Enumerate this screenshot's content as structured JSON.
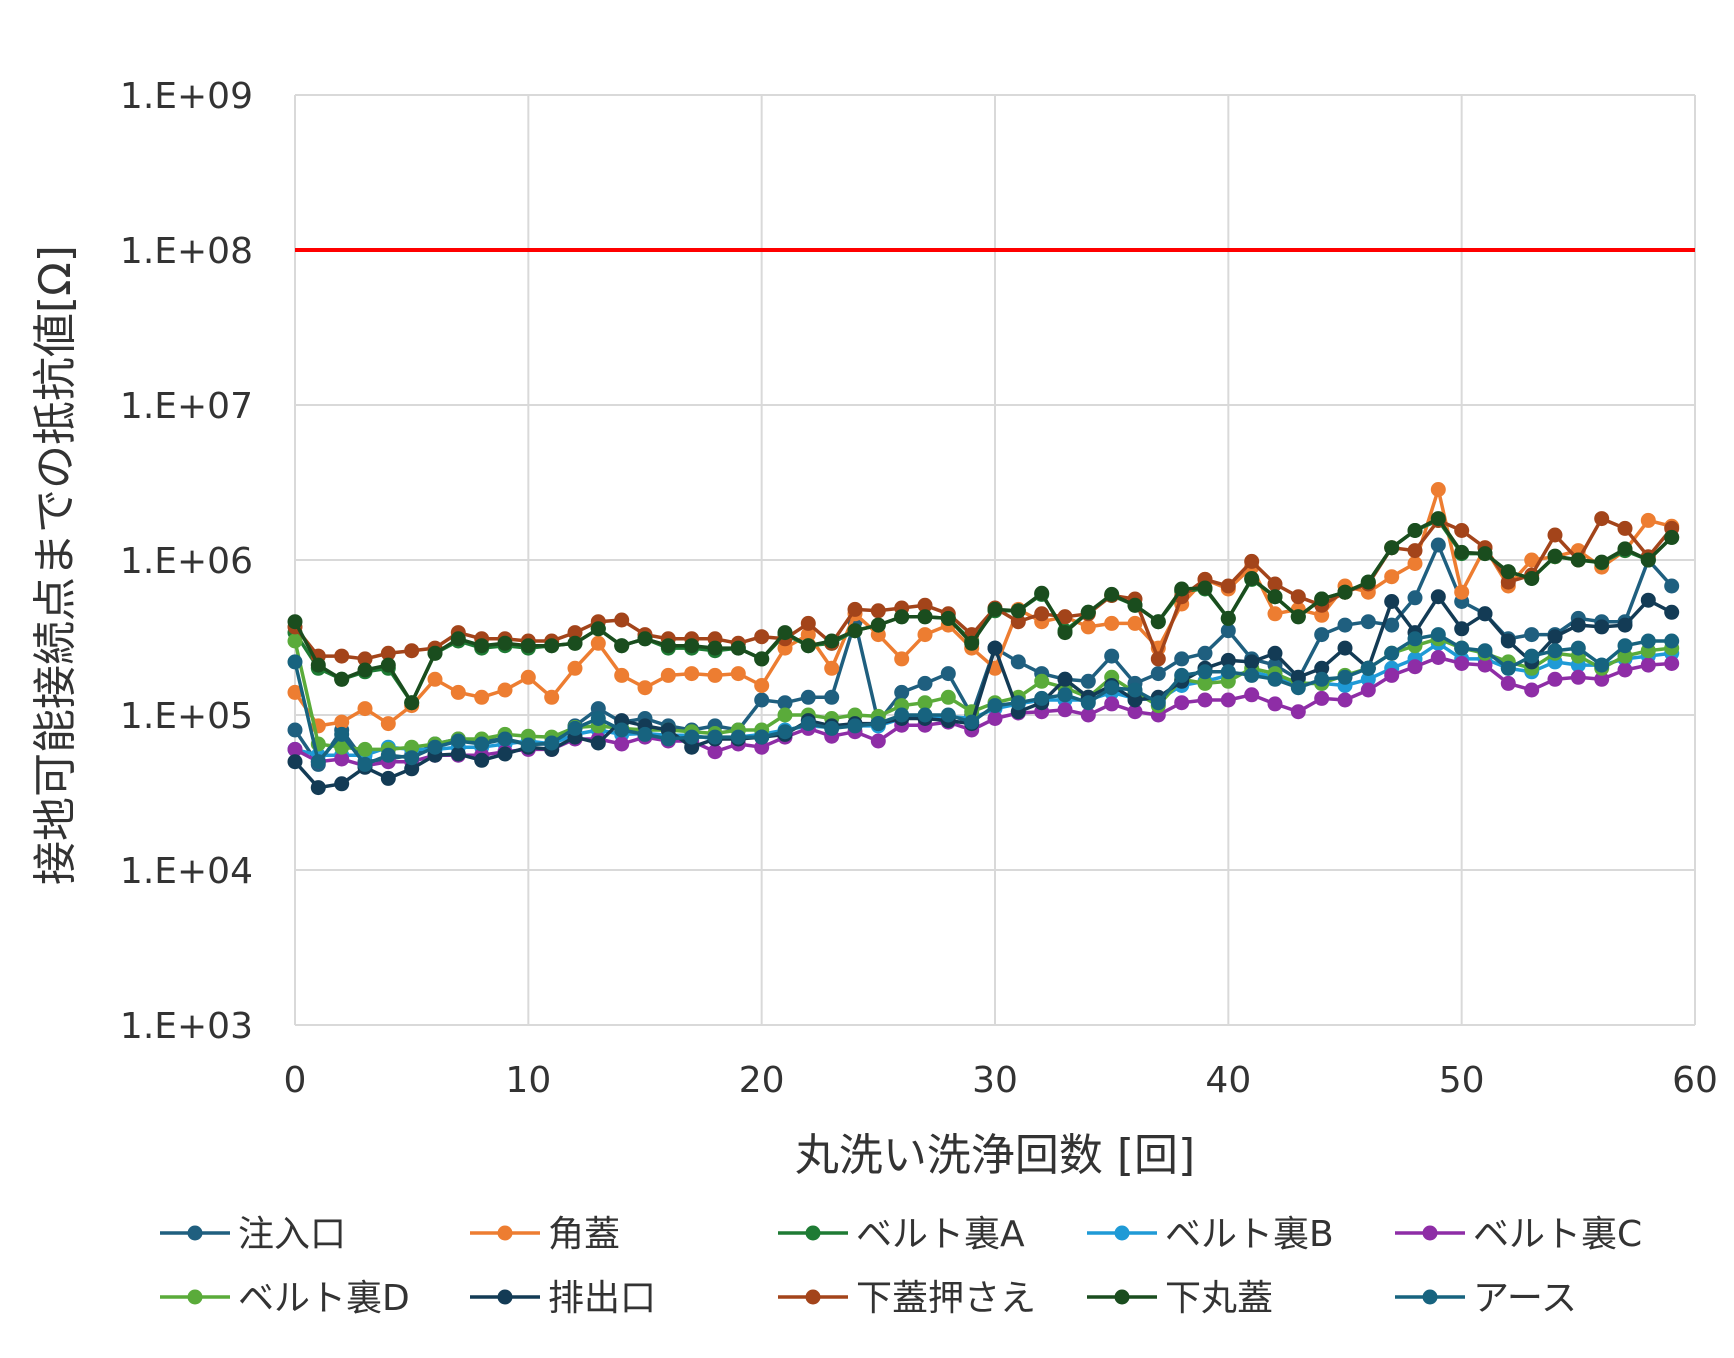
{
  "chart_data": {
    "type": "line",
    "title": "",
    "xlabel": "丸洗い洗浄回数 [回]",
    "ylabel": "接地可能接続点までの抵抗値[Ω]",
    "xlim": [
      0,
      60
    ],
    "ylim": [
      1000,
      1000000000
    ],
    "yscale": "log",
    "grid": true,
    "legend_position": "bottom",
    "xticks": [
      "0",
      "10",
      "20",
      "30",
      "40",
      "50",
      "60"
    ],
    "yticks": [
      "1.E+03",
      "1.E+04",
      "1.E+05",
      "1.E+06",
      "1.E+07",
      "1.E+08",
      "1.E+09"
    ],
    "threshold": {
      "value": 100000000,
      "color": "#ff0000"
    },
    "x": [
      0,
      1,
      2,
      3,
      4,
      5,
      6,
      7,
      8,
      9,
      10,
      11,
      12,
      13,
      14,
      15,
      16,
      17,
      18,
      19,
      20,
      21,
      22,
      23,
      24,
      25,
      26,
      27,
      28,
      29,
      30,
      31,
      32,
      33,
      34,
      35,
      36,
      37,
      38,
      39,
      40,
      41,
      42,
      43,
      44,
      45,
      46,
      47,
      48,
      49,
      50,
      51,
      52,
      53,
      54,
      55,
      56,
      57,
      58,
      59
    ],
    "series": [
      {
        "name": "注入口",
        "color": "#1f5f7f",
        "values": [
          80000,
          48000,
          80000,
          50000,
          52000,
          55000,
          65000,
          70000,
          68000,
          70000,
          65000,
          65000,
          85000,
          110000,
          90000,
          95000,
          85000,
          80000,
          85000,
          80000,
          125000,
          120000,
          130000,
          130000,
          400000,
          90000,
          140000,
          160000,
          185000,
          100000,
          270000,
          220000,
          185000,
          170000,
          165000,
          240000,
          160000,
          185000,
          230000,
          250000,
          350000,
          230000,
          210000,
          170000,
          330000,
          380000,
          400000,
          380000,
          570000,
          1250000,
          540000,
          450000,
          310000,
          330000,
          330000,
          420000,
          400000,
          400000,
          1000000,
          680000
        ]
      },
      {
        "name": "角蓋",
        "color": "#ed7d31",
        "values": [
          140000,
          85000,
          90000,
          110000,
          88000,
          115000,
          170000,
          140000,
          130000,
          145000,
          175000,
          130000,
          200000,
          290000,
          180000,
          150000,
          180000,
          185000,
          180000,
          185000,
          155000,
          270000,
          330000,
          200000,
          450000,
          330000,
          230000,
          330000,
          380000,
          270000,
          200000,
          480000,
          400000,
          430000,
          370000,
          390000,
          390000,
          270000,
          520000,
          750000,
          650000,
          900000,
          450000,
          480000,
          440000,
          680000,
          620000,
          780000,
          950000,
          2850000,
          620000,
          1200000,
          680000,
          1000000,
          1050000,
          1150000,
          900000,
          1150000,
          1800000,
          1650000
        ]
      },
      {
        "name": "ベルト裏A",
        "color": "#1e7b34",
        "values": [
          340000,
          200000,
          170000,
          190000,
          200000,
          120000,
          250000,
          300000,
          270000,
          280000,
          270000,
          280000,
          290000,
          360000,
          280000,
          310000,
          270000,
          270000,
          260000,
          270000,
          230000,
          330000,
          280000,
          290000,
          350000,
          380000,
          430000,
          430000,
          420000,
          300000,
          470000,
          470000,
          600000,
          350000,
          460000,
          590000,
          510000,
          400000,
          630000,
          650000,
          420000,
          750000,
          580000,
          430000,
          560000,
          620000,
          720000,
          1200000,
          1550000,
          1800000,
          1100000,
          1100000,
          840000,
          760000,
          1050000,
          1000000,
          960000,
          1150000,
          1000000,
          1400000
        ]
      },
      {
        "name": "ベルト裏B",
        "color": "#1f9ad6",
        "values": [
          60000,
          55000,
          55000,
          55000,
          62000,
          60000,
          60000,
          62000,
          62000,
          65000,
          68000,
          65000,
          75000,
          80000,
          75000,
          76000,
          74000,
          74000,
          70000,
          72000,
          75000,
          80000,
          85000,
          83000,
          85000,
          85000,
          95000,
          97000,
          98000,
          95000,
          110000,
          118000,
          125000,
          125000,
          125000,
          140000,
          128000,
          125000,
          155000,
          165000,
          180000,
          190000,
          175000,
          160000,
          160000,
          155000,
          170000,
          200000,
          230000,
          290000,
          230000,
          230000,
          200000,
          190000,
          220000,
          210000,
          210000,
          230000,
          240000,
          250000
        ]
      },
      {
        "name": "ベルト裏C",
        "color": "#8e2da6",
        "values": [
          60000,
          50000,
          52000,
          47000,
          50000,
          50000,
          55000,
          55000,
          55000,
          58000,
          60000,
          60000,
          70000,
          70000,
          65000,
          72000,
          68000,
          68000,
          58000,
          65000,
          62000,
          72000,
          82000,
          73000,
          78000,
          68000,
          86000,
          86000,
          90000,
          80000,
          95000,
          103000,
          105000,
          108000,
          100000,
          118000,
          105000,
          100000,
          120000,
          125000,
          125000,
          135000,
          118000,
          105000,
          128000,
          125000,
          145000,
          180000,
          205000,
          235000,
          215000,
          210000,
          160000,
          145000,
          170000,
          175000,
          170000,
          195000,
          210000,
          215000
        ]
      },
      {
        "name": "ベルト裏D",
        "color": "#5aab3a",
        "values": [
          300000,
          65000,
          62000,
          60000,
          60000,
          62000,
          65000,
          70000,
          70000,
          75000,
          73000,
          72000,
          83000,
          85000,
          82000,
          80000,
          80000,
          78000,
          76000,
          80000,
          80000,
          100000,
          100000,
          95000,
          100000,
          98000,
          115000,
          120000,
          130000,
          105000,
          120000,
          130000,
          165000,
          150000,
          130000,
          175000,
          140000,
          115000,
          170000,
          160000,
          165000,
          200000,
          185000,
          160000,
          160000,
          180000,
          200000,
          250000,
          280000,
          310000,
          270000,
          250000,
          220000,
          200000,
          250000,
          240000,
          200000,
          240000,
          260000,
          270000
        ]
      },
      {
        "name": "排出口",
        "color": "#133b55",
        "values": [
          50000,
          34000,
          36000,
          46000,
          39000,
          45000,
          55000,
          56000,
          51000,
          56000,
          62000,
          60000,
          72000,
          66000,
          92000,
          85000,
          80000,
          62000,
          70000,
          70000,
          72000,
          75000,
          92000,
          85000,
          88000,
          88000,
          95000,
          95000,
          92000,
          88000,
          270000,
          105000,
          120000,
          170000,
          130000,
          155000,
          125000,
          130000,
          165000,
          200000,
          225000,
          220000,
          250000,
          175000,
          200000,
          270000,
          200000,
          540000,
          340000,
          580000,
          360000,
          450000,
          300000,
          220000,
          320000,
          380000,
          370000,
          380000,
          550000,
          460000
        ]
      },
      {
        "name": "下蓋押さえ",
        "color": "#a3441a",
        "values": [
          370000,
          240000,
          240000,
          230000,
          250000,
          260000,
          270000,
          340000,
          310000,
          310000,
          300000,
          300000,
          340000,
          400000,
          410000,
          330000,
          310000,
          310000,
          310000,
          290000,
          320000,
          310000,
          390000,
          290000,
          480000,
          470000,
          490000,
          510000,
          450000,
          330000,
          490000,
          400000,
          450000,
          430000,
          450000,
          590000,
          560000,
          230000,
          580000,
          750000,
          680000,
          980000,
          700000,
          580000,
          510000,
          620000,
          700000,
          1200000,
          1150000,
          1800000,
          1550000,
          1200000,
          720000,
          800000,
          1450000,
          1000000,
          1850000,
          1600000,
          1050000,
          1600000
        ]
      },
      {
        "name": "下丸蓋",
        "color": "#1a4d1e",
        "values": [
          400000,
          210000,
          170000,
          195000,
          210000,
          120000,
          250000,
          310000,
          280000,
          290000,
          280000,
          280000,
          290000,
          360000,
          280000,
          310000,
          280000,
          280000,
          270000,
          270000,
          230000,
          340000,
          280000,
          300000,
          350000,
          380000,
          430000,
          430000,
          420000,
          290000,
          480000,
          470000,
          610000,
          340000,
          460000,
          600000,
          510000,
          400000,
          650000,
          660000,
          420000,
          760000,
          580000,
          430000,
          560000,
          620000,
          720000,
          1200000,
          1550000,
          1850000,
          1120000,
          1100000,
          840000,
          760000,
          1060000,
          1000000,
          970000,
          1180000,
          1000000,
          1400000
        ]
      },
      {
        "name": "アース",
        "color": "#17637f",
        "values": [
          220000,
          50000,
          75000,
          48000,
          55000,
          53000,
          62000,
          68000,
          65000,
          70000,
          64000,
          66000,
          82000,
          95000,
          80000,
          75000,
          70000,
          72000,
          72000,
          72000,
          72000,
          78000,
          88000,
          82000,
          85000,
          88000,
          100000,
          100000,
          100000,
          90000,
          115000,
          120000,
          128000,
          135000,
          120000,
          150000,
          145000,
          120000,
          180000,
          190000,
          190000,
          180000,
          170000,
          150000,
          170000,
          175000,
          200000,
          250000,
          310000,
          330000,
          270000,
          260000,
          200000,
          240000,
          260000,
          270000,
          210000,
          280000,
          300000,
          300000
        ]
      }
    ]
  }
}
